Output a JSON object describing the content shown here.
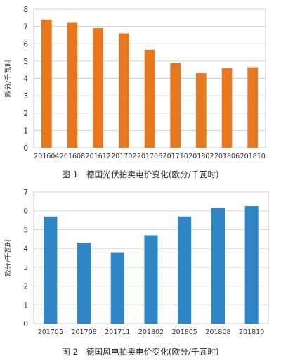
{
  "chart_data": [
    {
      "type": "bar",
      "categories": [
        "201604",
        "201608",
        "201612",
        "201702",
        "201706",
        "201710",
        "201802",
        "201806",
        "201810"
      ],
      "values": [
        7.4,
        7.25,
        6.9,
        6.6,
        5.65,
        4.9,
        4.3,
        4.6,
        4.65
      ],
      "ylabel": "欧分/千瓦时",
      "ylim": [
        0,
        8
      ],
      "yticks": [
        0,
        1,
        2,
        3,
        4,
        5,
        6,
        7,
        8
      ],
      "grid": true,
      "color": "#E8781F",
      "caption": "图 1　德国光伏拍卖电价变化(欧分/千瓦时)"
    },
    {
      "type": "bar",
      "categories": [
        "201705",
        "201708",
        "201711",
        "201802",
        "201805",
        "201808",
        "201810"
      ],
      "values": [
        5.7,
        4.3,
        3.8,
        4.7,
        5.7,
        6.15,
        6.25
      ],
      "ylabel": "欧分/千瓦时",
      "ylim": [
        0,
        7
      ],
      "yticks": [
        0,
        1,
        2,
        3,
        4,
        5,
        6,
        7
      ],
      "grid": true,
      "color": "#2E86C8",
      "caption": "图 2　德国风电拍卖电价变化(欧分/千瓦时)"
    }
  ]
}
